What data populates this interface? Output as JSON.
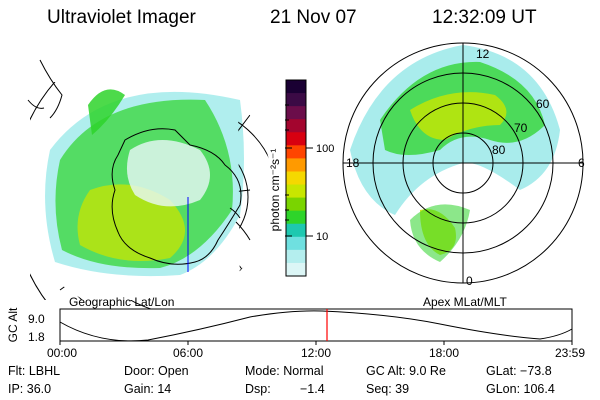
{
  "header": {
    "instrument": "Ultraviolet Imager",
    "date": "21 Nov 07",
    "time": "12:32:09 UT"
  },
  "colorbar": {
    "unit_label": "photon cm⁻²s⁻¹",
    "tick_labels": [
      "100",
      "10"
    ],
    "colors": [
      "#1a0033",
      "#3b0a45",
      "#6b0d4a",
      "#a3052e",
      "#d80010",
      "#ff4500",
      "#ff9a00",
      "#f5d800",
      "#c8e600",
      "#7ad400",
      "#2ed42a",
      "#1ec8b0",
      "#6fe0e0",
      "#b4eeee",
      "#dcf6f6"
    ]
  },
  "left_map": {
    "caption": "Geographic Lat/Lon"
  },
  "right_map": {
    "caption": "Apex MLat/MLT",
    "mlt_labels": [
      "12",
      "18",
      "6",
      "0"
    ],
    "mlat_labels": [
      "60",
      "70",
      "80"
    ]
  },
  "timeline": {
    "ylabel": "GC Alt",
    "y_ticks": [
      "9.0",
      "1.8"
    ],
    "x_ticks": [
      "00:00",
      "06:00",
      "12:00",
      "18:00",
      "23:59"
    ],
    "marker_color": "#ff0000"
  },
  "status": {
    "flt": "Flt: LBHL",
    "door": "Door: Open",
    "mode": "Mode: Normal",
    "gc_alt": "GC Alt: 9.0 Re",
    "glat": "GLat: −73.8",
    "ip": "IP: 36.0",
    "gain": "Gain: 14",
    "dsp_label": "Dsp:",
    "dsp_value": "−1.4",
    "seq": "Seq: 39",
    "glon": "GLon: 106.4"
  }
}
